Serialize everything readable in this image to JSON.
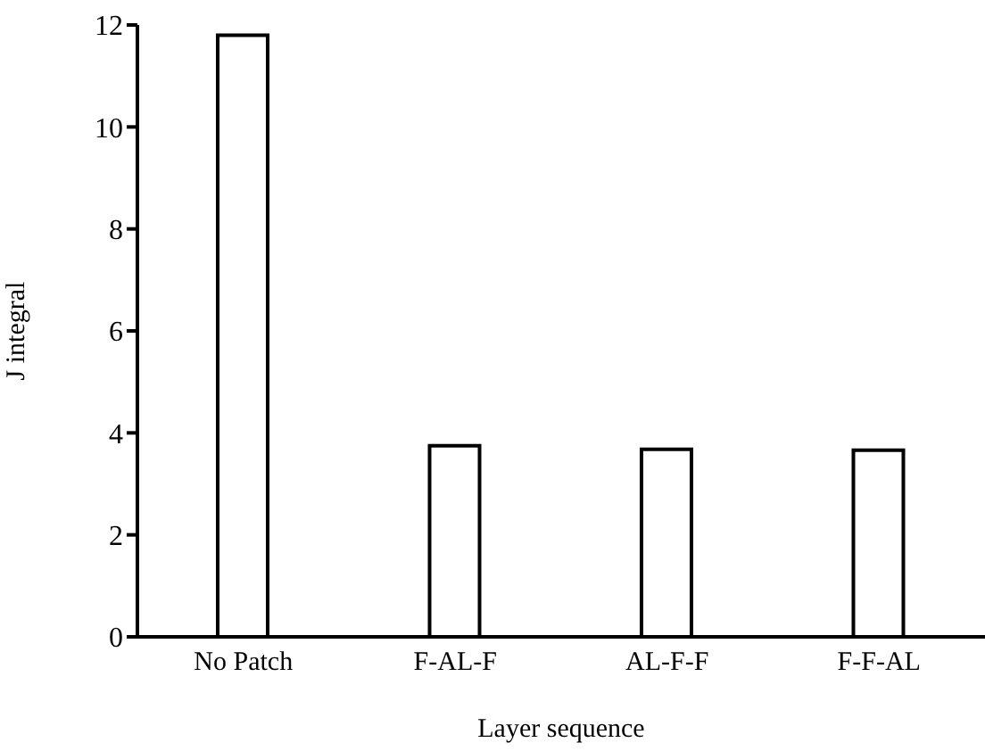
{
  "chart_data": {
    "type": "bar",
    "xlabel": "Layer sequence",
    "ylabel": "J integral",
    "categories": [
      "No Patch",
      "F-AL-F",
      "AL-F-F",
      "F-F-AL"
    ],
    "values": [
      11.8,
      3.75,
      3.68,
      3.66
    ],
    "color": "#ffffff",
    "ylim": [
      0,
      12
    ],
    "yticks": [
      0,
      2,
      4,
      6,
      8,
      10,
      12
    ],
    "grid": false,
    "legend": false
  }
}
